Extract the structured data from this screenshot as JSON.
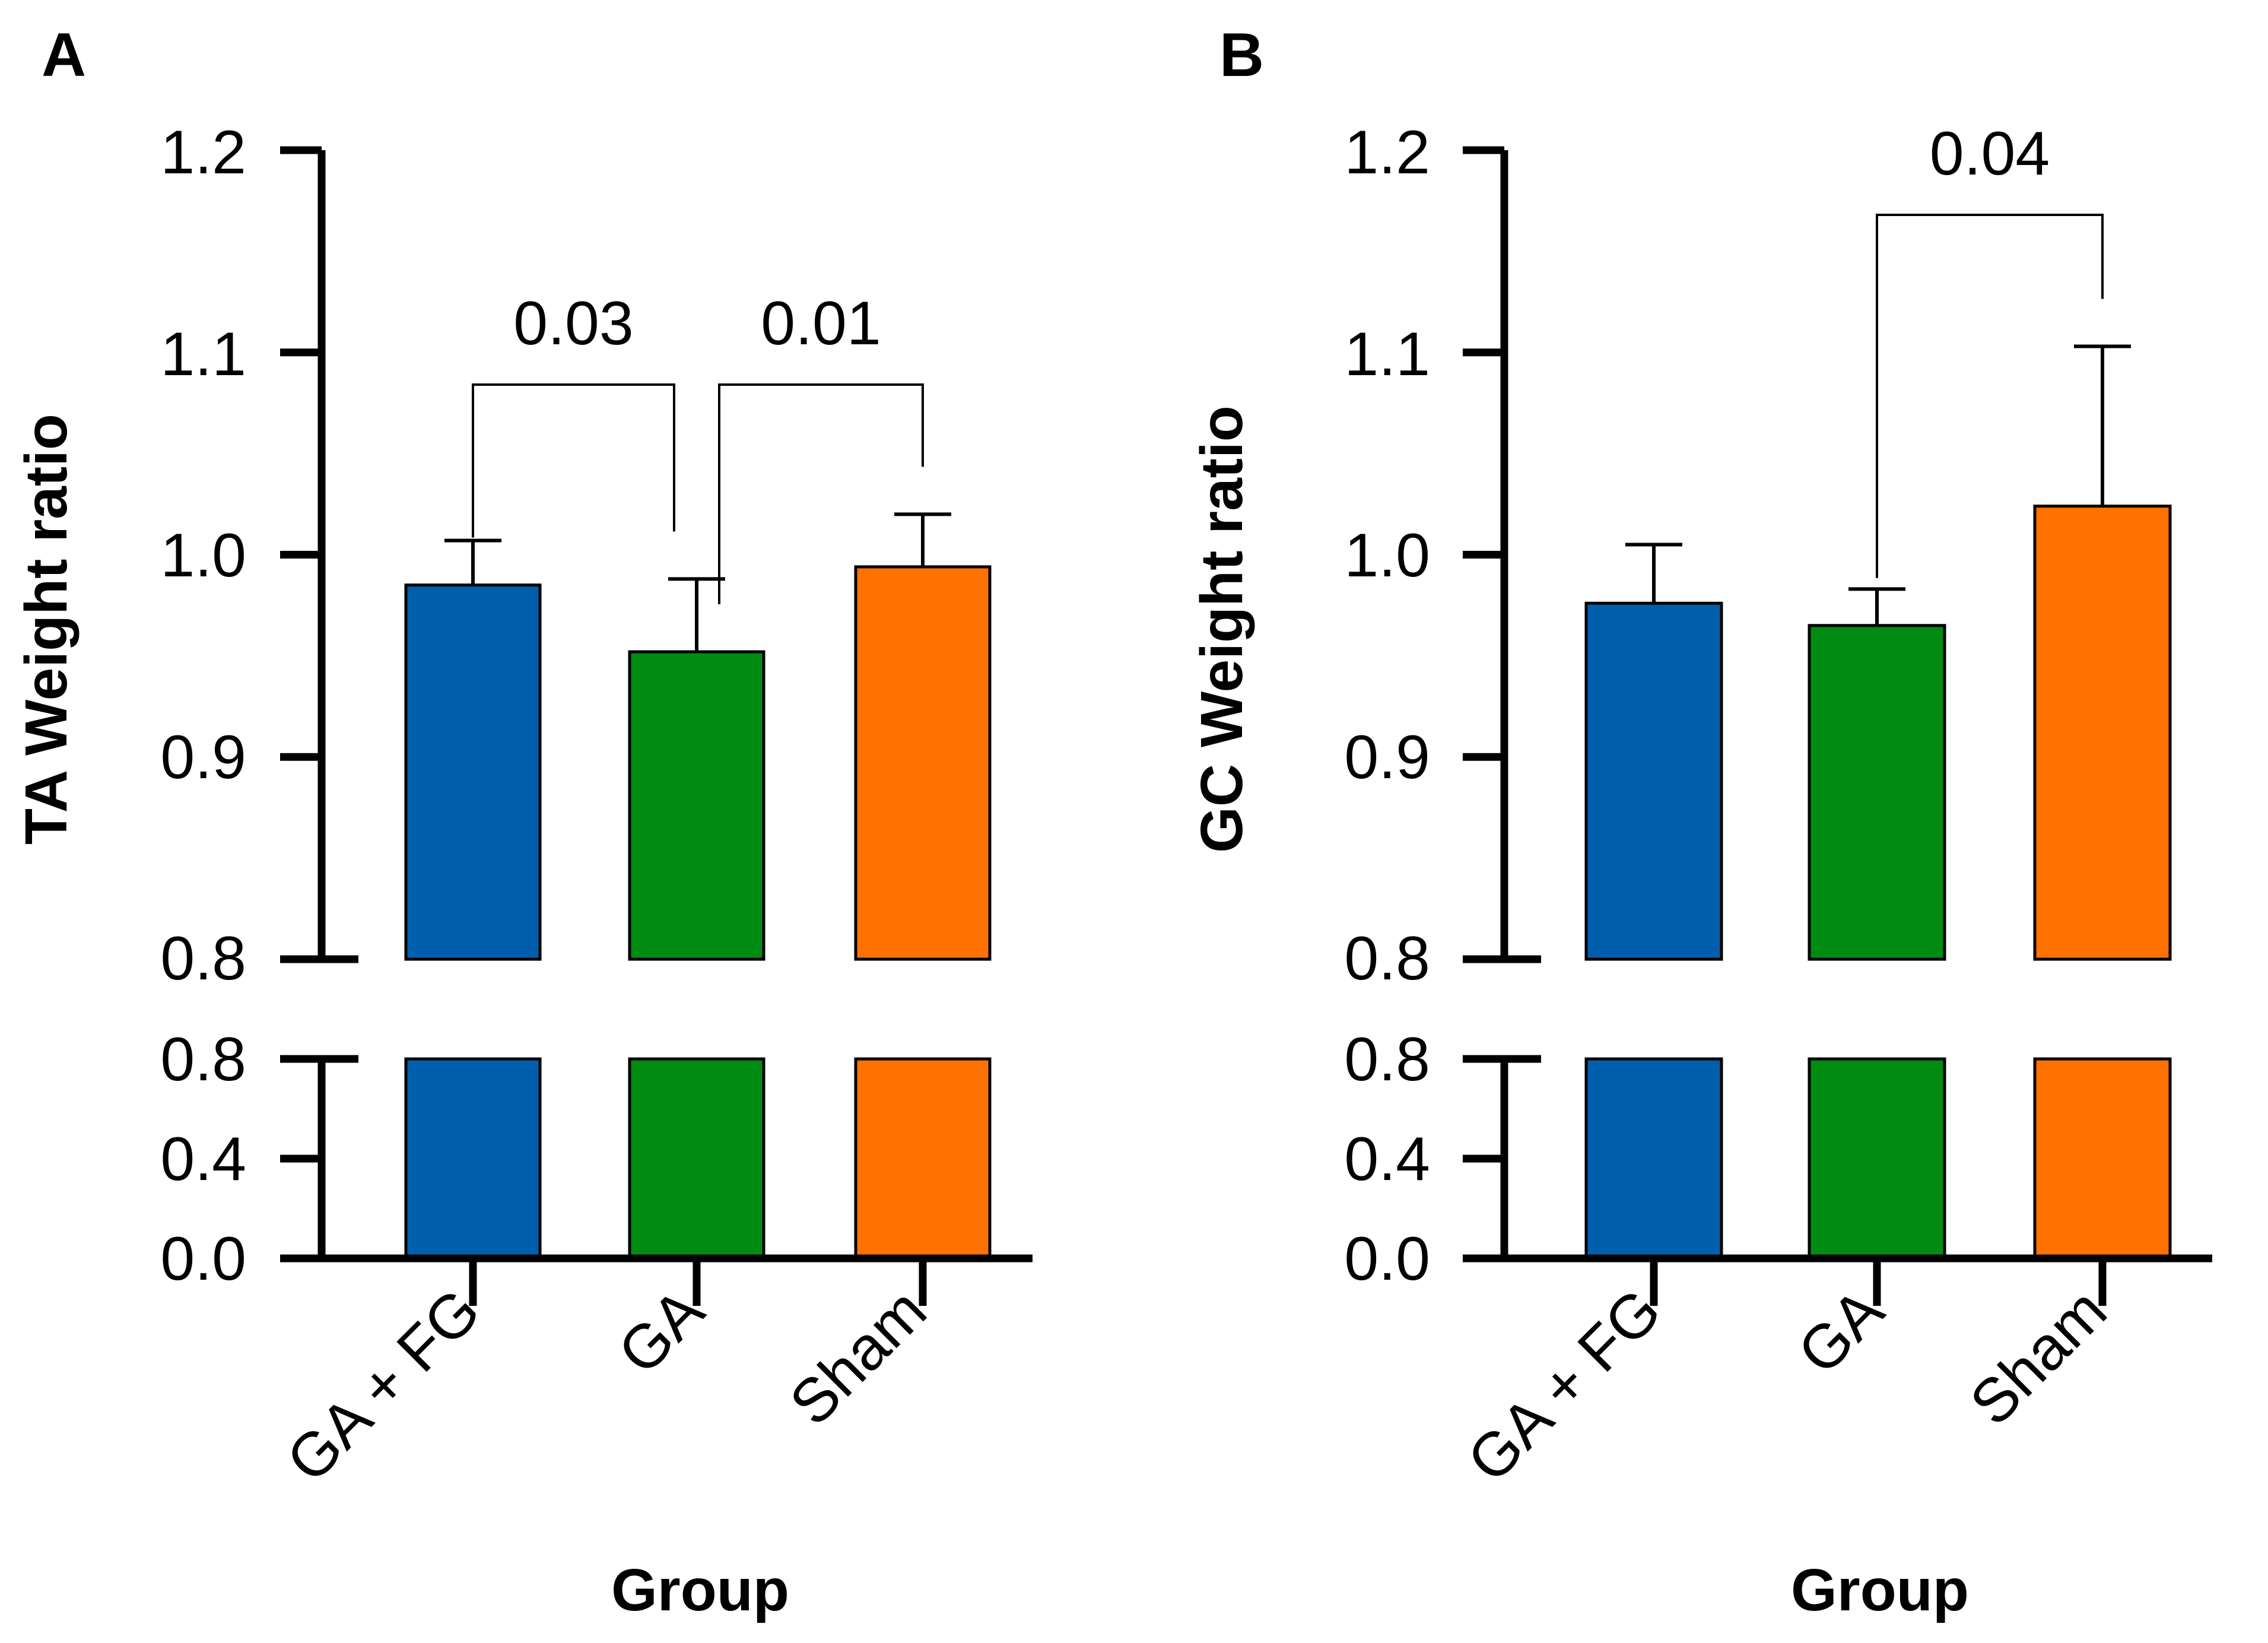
{
  "chart_data": [
    {
      "type": "bar",
      "panel": "A",
      "title": "",
      "xlabel": "Group",
      "ylabel": "TA Weight ratio",
      "categories": [
        "GA + FG",
        "GA",
        "Sham"
      ],
      "values": [
        0.985,
        0.952,
        0.994
      ],
      "error_upper": [
        1.007,
        0.988,
        1.02
      ],
      "colors": [
        "#005fac",
        "#008c12",
        "#ff7100"
      ],
      "ylim_upper": [
        0.8,
        1.2
      ],
      "ylim_lower": [
        0.0,
        0.8
      ],
      "yticks_upper": [
        "0.8",
        "0.9",
        "1.0",
        "1.1",
        "1.2"
      ],
      "yticks_lower": [
        "0.0",
        "0.4",
        "0.8"
      ],
      "comparisons": [
        {
          "from": 0,
          "to": 1,
          "label": "0.03"
        },
        {
          "from": 1,
          "to": 2,
          "label": "0.01"
        }
      ]
    },
    {
      "type": "bar",
      "panel": "B",
      "title": "",
      "xlabel": "Group",
      "ylabel": "GC Weight ratio",
      "categories": [
        "GA + FG",
        "GA",
        "Sham"
      ],
      "values": [
        0.976,
        0.965,
        1.024
      ],
      "error_upper": [
        1.005,
        0.983,
        1.103
      ],
      "colors": [
        "#005fac",
        "#008c12",
        "#ff7100"
      ],
      "ylim_upper": [
        0.8,
        1.2
      ],
      "ylim_lower": [
        0.0,
        0.8
      ],
      "yticks_upper": [
        "0.8",
        "0.9",
        "1.0",
        "1.1",
        "1.2"
      ],
      "yticks_lower": [
        "0.0",
        "0.4",
        "0.8"
      ],
      "comparisons": [
        {
          "from": 1,
          "to": 2,
          "label": "0.04"
        }
      ]
    }
  ]
}
